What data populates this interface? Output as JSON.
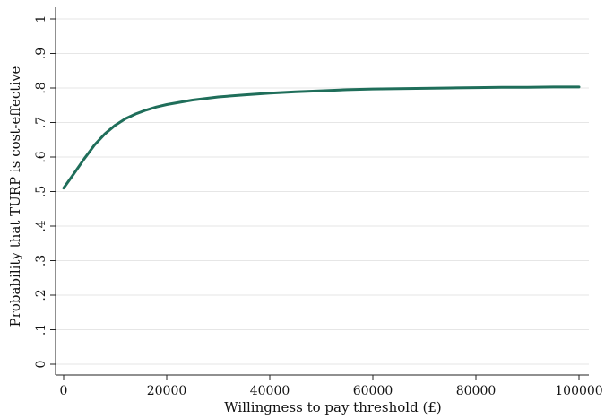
{
  "chart_data": {
    "type": "line",
    "xlabel": "Willingness to pay threshold (£)",
    "ylabel": "Probability that TURP is cost-effective",
    "xlim": [
      0,
      100000
    ],
    "ylim": [
      0,
      1
    ],
    "x_ticks": [
      {
        "value": 0,
        "label": "0"
      },
      {
        "value": 20000,
        "label": "20000"
      },
      {
        "value": 40000,
        "label": "40000"
      },
      {
        "value": 60000,
        "label": "60000"
      },
      {
        "value": 80000,
        "label": "80000"
      },
      {
        "value": 100000,
        "label": "100000"
      }
    ],
    "y_ticks": [
      {
        "value": 0,
        "label": "0"
      },
      {
        "value": 0.1,
        "label": ".1"
      },
      {
        "value": 0.2,
        "label": ".2"
      },
      {
        "value": 0.3,
        "label": ".3"
      },
      {
        "value": 0.4,
        "label": ".4"
      },
      {
        "value": 0.5,
        "label": ".5"
      },
      {
        "value": 0.6,
        "label": ".6"
      },
      {
        "value": 0.7,
        "label": ".7"
      },
      {
        "value": 0.8,
        "label": ".8"
      },
      {
        "value": 0.9,
        "label": ".9"
      },
      {
        "value": 1,
        "label": "1"
      }
    ],
    "grid": true,
    "series": [
      {
        "color": "#1f6e5a",
        "x": [
          0,
          2000,
          4000,
          6000,
          8000,
          10000,
          12000,
          14000,
          16000,
          18000,
          20000,
          25000,
          30000,
          35000,
          40000,
          45000,
          50000,
          55000,
          60000,
          65000,
          70000,
          75000,
          80000,
          85000,
          90000,
          95000,
          100000
        ],
        "y": [
          0.51,
          0.552,
          0.595,
          0.635,
          0.667,
          0.692,
          0.711,
          0.725,
          0.736,
          0.745,
          0.752,
          0.765,
          0.774,
          0.78,
          0.785,
          0.789,
          0.792,
          0.795,
          0.797,
          0.798,
          0.799,
          0.8,
          0.801,
          0.802,
          0.802,
          0.803,
          0.803
        ]
      }
    ]
  }
}
